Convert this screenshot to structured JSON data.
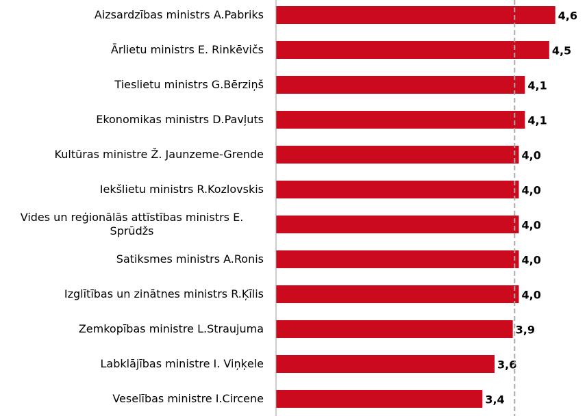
{
  "chart_data": {
    "type": "bar",
    "orientation": "horizontal",
    "categories": [
      "Aizsardzības ministrs A.Pabriks",
      "Ārlietu ministrs E. Rinkēvičs",
      "Tieslietu ministrs G.Bērziņš",
      "Ekonomikas ministrs D.Pavļuts",
      "Kultūras ministre Ž. Jaunzeme-Grende",
      "Iekšlietu ministrs R.Kozlovskis",
      "Vides un reģionālās attīstības ministrs E. Sprūdžs",
      "Satiksmes ministrs A.Ronis",
      "Izglītības un zinātnes ministrs R.Ķīlis",
      "Zemkopības ministre L.Straujuma",
      "Labklājības ministre I. Viņķele",
      "Veselības ministre I.Circene"
    ],
    "values": [
      4.6,
      4.5,
      4.1,
      4.1,
      4.0,
      4.0,
      4.0,
      4.0,
      4.0,
      3.9,
      3.6,
      3.4
    ],
    "value_labels": [
      "4,6",
      "4,5",
      "4,1",
      "4,1",
      "4,0",
      "4,0",
      "4,0",
      "4,0",
      "4,0",
      "3,9",
      "3,6",
      "3,4"
    ],
    "color": "#cc0a1e",
    "xlim": [
      0,
      5.1
    ],
    "reference_line": 3.93
  }
}
